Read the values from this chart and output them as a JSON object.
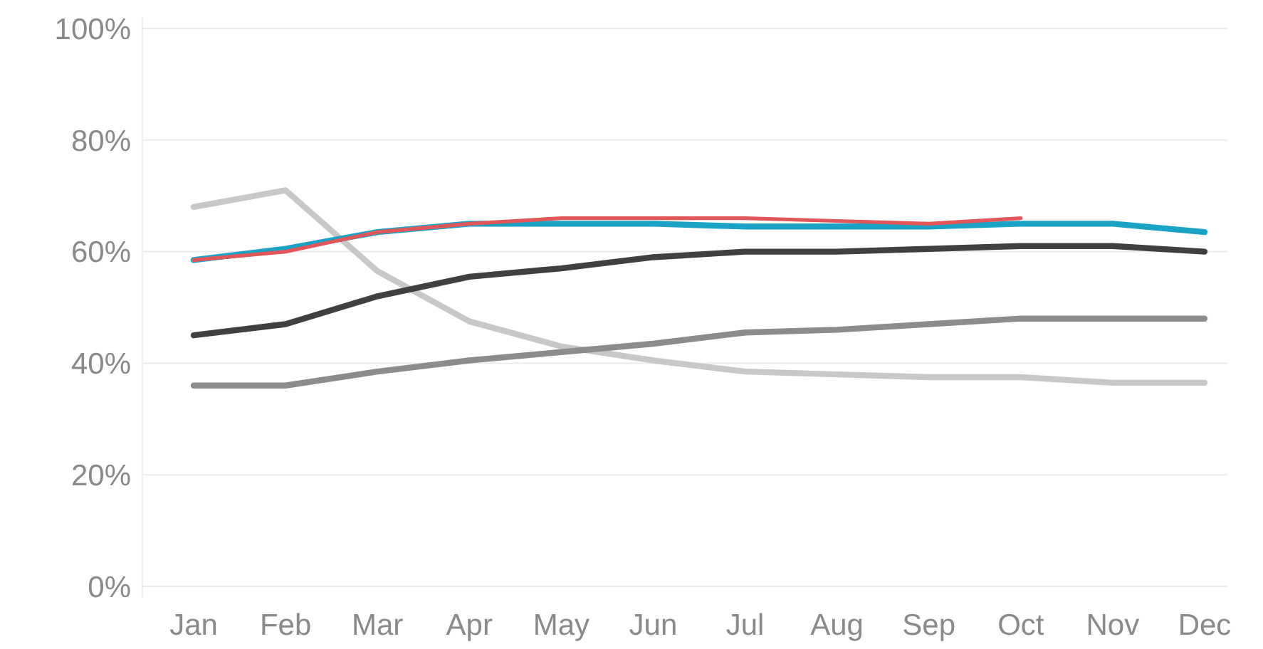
{
  "chart_data": {
    "type": "line",
    "categories": [
      "Jan",
      "Feb",
      "Mar",
      "Apr",
      "May",
      "Jun",
      "Jul",
      "Aug",
      "Sep",
      "Oct",
      "Nov",
      "Dec"
    ],
    "ylim": [
      0,
      100
    ],
    "yticks": [
      {
        "value": 0,
        "label": "0%"
      },
      {
        "value": 20,
        "label": "20%"
      },
      {
        "value": 40,
        "label": "40%"
      },
      {
        "value": 60,
        "label": "60%"
      },
      {
        "value": 80,
        "label": "80%"
      },
      {
        "value": 100,
        "label": "100%"
      }
    ],
    "grid": "y",
    "marker": "none",
    "line_style": "solid",
    "series": [
      {
        "color": "#c8c8c8",
        "values": [
          68,
          71,
          56.5,
          47.5,
          43,
          40.5,
          38.5,
          38,
          37.5,
          37.5,
          36.5,
          36.5
        ]
      },
      {
        "color": "#8c8c8c",
        "values": [
          36,
          36,
          38.5,
          40.5,
          42,
          43.5,
          45.5,
          46,
          47,
          48,
          48,
          48
        ]
      },
      {
        "color": "#404040",
        "values": [
          45,
          47,
          52,
          55.5,
          57,
          59,
          60,
          60,
          60.5,
          61,
          61,
          60
        ]
      },
      {
        "color": "#1ba3c6",
        "values": [
          58.5,
          60.5,
          63.5,
          65,
          65,
          65,
          64.5,
          64.5,
          64.5,
          65,
          65,
          63.5
        ]
      },
      {
        "color": "#e15759",
        "values": [
          58.5,
          60,
          63.5,
          65,
          66,
          66,
          66,
          65.5,
          65,
          66,
          null,
          null
        ]
      }
    ]
  }
}
